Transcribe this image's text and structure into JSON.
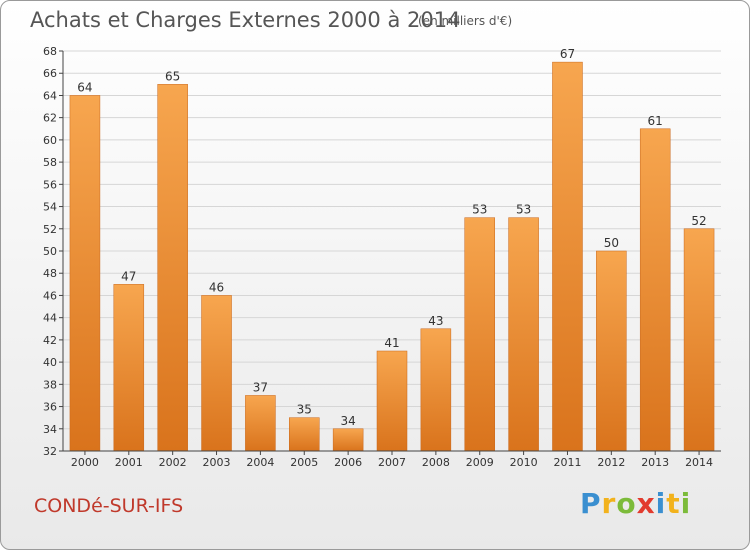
{
  "header": {
    "title": "Achats et Charges Externes 2000 à 2014",
    "subtitle": "(en milliers d'€)"
  },
  "footer": {
    "commune": "CONDé-SUR-IFS",
    "logo_letters": [
      {
        "ch": "P",
        "color": "#3a8fd0"
      },
      {
        "ch": "r",
        "color": "#f2b21c"
      },
      {
        "ch": "o",
        "color": "#7cbb3a"
      },
      {
        "ch": "x",
        "color": "#e23b2e"
      },
      {
        "ch": "i",
        "color": "#3a8fd0"
      },
      {
        "ch": "t",
        "color": "#f2b21c"
      },
      {
        "ch": "i",
        "color": "#7cbb3a"
      }
    ]
  },
  "colors": {
    "bar_top": "#f7a64f",
    "bar_bottom": "#d9731c",
    "grid": "#d6d6d6",
    "axis": "#444444"
  },
  "chart_data": {
    "type": "bar",
    "title": "Achats et Charges Externes 2000 à 2014",
    "subtitle": "(en milliers d'€)",
    "xlabel": "",
    "ylabel": "",
    "categories": [
      "2000",
      "2001",
      "2002",
      "2003",
      "2004",
      "2005",
      "2006",
      "2007",
      "2008",
      "2009",
      "2010",
      "2011",
      "2012",
      "2013",
      "2014"
    ],
    "values": [
      64,
      47,
      65,
      46,
      37,
      35,
      34,
      41,
      43,
      53,
      53,
      67,
      50,
      61,
      52
    ],
    "ylim": [
      32,
      68
    ],
    "yticks": [
      32,
      34,
      36,
      38,
      40,
      42,
      44,
      46,
      48,
      50,
      52,
      54,
      56,
      58,
      60,
      62,
      64,
      66,
      68
    ],
    "grid": true,
    "legend": "none"
  }
}
